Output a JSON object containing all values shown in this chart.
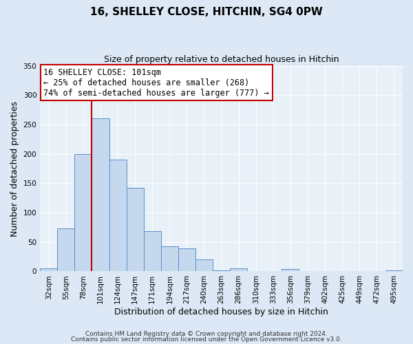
{
  "title": "16, SHELLEY CLOSE, HITCHIN, SG4 0PW",
  "subtitle": "Size of property relative to detached houses in Hitchin",
  "xlabel": "Distribution of detached houses by size in Hitchin",
  "ylabel": "Number of detached properties",
  "bin_labels": [
    "32sqm",
    "55sqm",
    "78sqm",
    "101sqm",
    "124sqm",
    "147sqm",
    "171sqm",
    "194sqm",
    "217sqm",
    "240sqm",
    "263sqm",
    "286sqm",
    "310sqm",
    "333sqm",
    "356sqm",
    "379sqm",
    "402sqm",
    "425sqm",
    "449sqm",
    "472sqm",
    "495sqm"
  ],
  "bar_values": [
    5,
    73,
    200,
    260,
    190,
    142,
    68,
    43,
    39,
    20,
    2,
    5,
    1,
    0,
    4,
    1,
    0,
    0,
    0,
    0,
    2
  ],
  "bar_color": "#c5d8ed",
  "bar_edge_color": "#5b8ec9",
  "vline_bin_index": 3,
  "vline_color": "#c00000",
  "annotation_title": "16 SHELLEY CLOSE: 101sqm",
  "annotation_line1": "← 25% of detached houses are smaller (268)",
  "annotation_line2": "74% of semi-detached houses are larger (777) →",
  "annotation_box_color": "#c00000",
  "ylim": [
    0,
    350
  ],
  "yticks": [
    0,
    50,
    100,
    150,
    200,
    250,
    300,
    350
  ],
  "footer1": "Contains HM Land Registry data © Crown copyright and database right 2024.",
  "footer2": "Contains public sector information licensed under the Open Government Licence v3.0.",
  "bg_color": "#dce8f5",
  "plot_bg_color": "#e8f0f8",
  "grid_color": "#ffffff",
  "title_fontsize": 11,
  "subtitle_fontsize": 9,
  "xlabel_fontsize": 9,
  "ylabel_fontsize": 9,
  "tick_fontsize": 7.5,
  "annotation_fontsize": 8.5,
  "footer_fontsize": 6.5
}
